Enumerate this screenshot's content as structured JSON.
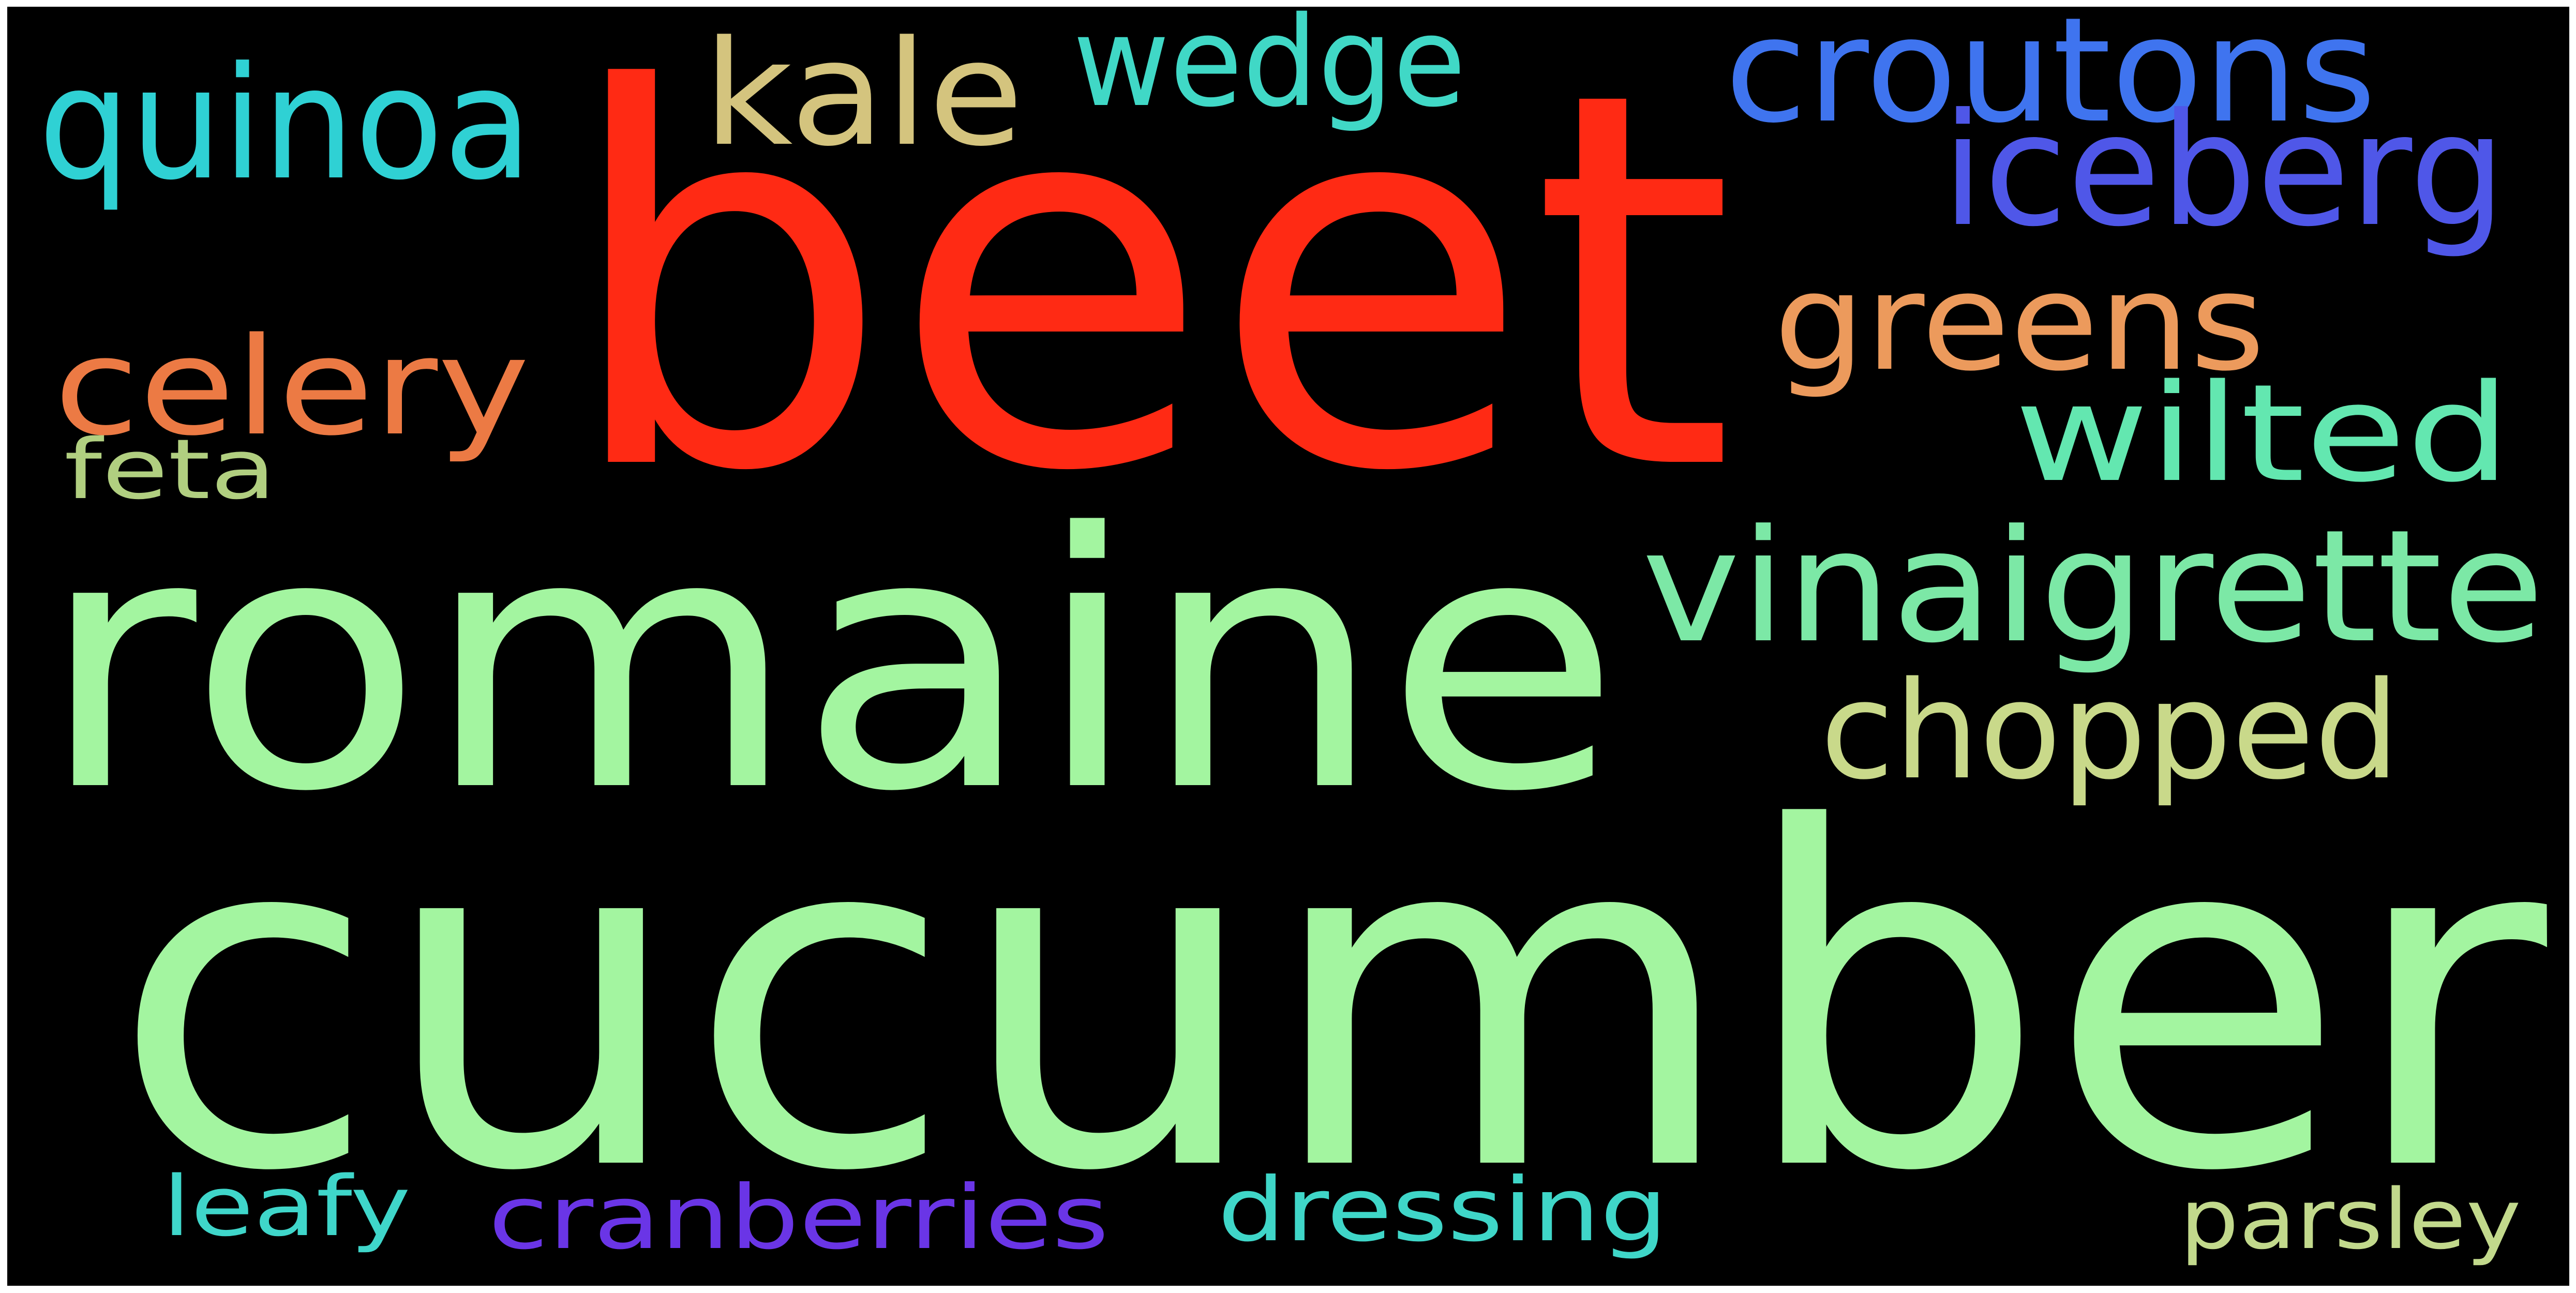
{
  "background_color": "#000000",
  "frame_color": "#ffffff",
  "words": [
    {
      "text": "beet",
      "color": "#ff2a14"
    },
    {
      "text": "cucumber",
      "color": "#a3f5a0"
    },
    {
      "text": "romaine",
      "color": "#a3f5a0"
    },
    {
      "text": "vinaigrette",
      "color": "#7ce8a6"
    },
    {
      "text": "croutons",
      "color": "#3f74ef"
    },
    {
      "text": "iceberg",
      "color": "#4f57e8"
    },
    {
      "text": "quinoa",
      "color": "#2fd1d4"
    },
    {
      "text": "kale",
      "color": "#d4c47e"
    },
    {
      "text": "wedge",
      "color": "#40d8c6"
    },
    {
      "text": "greens",
      "color": "#ec9a5c"
    },
    {
      "text": "celery",
      "color": "#ec7a44"
    },
    {
      "text": "wilted",
      "color": "#63e7b0"
    },
    {
      "text": "chopped",
      "color": "#c9d98a"
    },
    {
      "text": "feta",
      "color": "#b1cf80"
    },
    {
      "text": "leafy",
      "color": "#3fd6ca"
    },
    {
      "text": "cranberries",
      "color": "#6a35e6"
    },
    {
      "text": "dressing",
      "color": "#3fd6c8"
    },
    {
      "text": "parsley",
      "color": "#c2d98c"
    }
  ]
}
